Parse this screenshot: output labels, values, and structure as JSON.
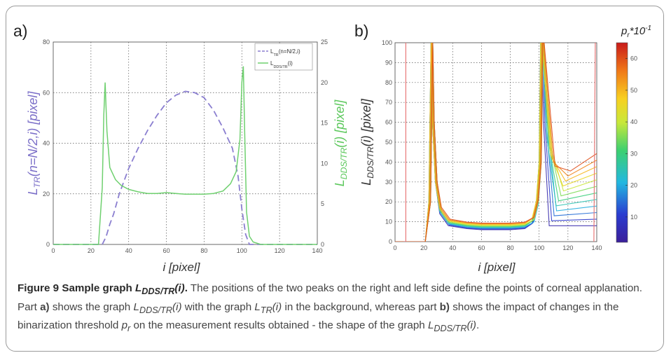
{
  "figure": {
    "caption_label": "Figure 9",
    "caption_title_pre": "Sample graph ",
    "caption_title_L": "L",
    "caption_title_sub": "DDS/TR",
    "caption_title_arg": "(i)",
    "caption_title_end": ".",
    "caption_s1": "The positions of the two peaks on the right and left side define the points of corneal applanation. Part ",
    "caption_a": "a)",
    "caption_s2": " shows the graph ",
    "caption_s2_L": "L",
    "caption_s2_sub": "DDS/TR",
    "caption_s2_arg": "(i)",
    "caption_s3": " with the graph ",
    "caption_s3_L": "L",
    "caption_s3_sub": "TR",
    "caption_s3_arg": "(i)",
    "caption_s4": " in the background, whereas part ",
    "caption_b": "b)",
    "caption_s5": " shows the impact of changes in the binarization threshold ",
    "caption_s5_p": "p",
    "caption_s5_sub": "r",
    "caption_s6": " on the measurement results obtained - the shape of the graph ",
    "caption_s6_L": "L",
    "caption_s6_sub": "DDS/TR",
    "caption_s6_arg": "(i)",
    "caption_s6_end": "."
  },
  "chart_data": [
    {
      "panel": "a)",
      "type": "line",
      "xlabel": "i [pixel]",
      "ylabel_left": "L_TR(n=N/2,i) [pixel]",
      "ylabel_right": "L_DDS/TR(i) [pixel]",
      "xlim": [
        0,
        140
      ],
      "ylim_left": [
        0,
        80
      ],
      "ylim_right": [
        0,
        25
      ],
      "xticks": [
        0,
        20,
        40,
        60,
        80,
        100,
        120,
        140
      ],
      "yticks_left": [
        0,
        20,
        40,
        60,
        80
      ],
      "yticks_right": [
        0,
        5,
        10,
        15,
        20,
        25
      ],
      "grid": true,
      "legend_position": "top-right",
      "colors": {
        "L_TR": "#8b7fd0",
        "L_DDS_TR": "#6fd06f",
        "left_axis": "#7b6fc8",
        "right_axis": "#5cc85c"
      },
      "series": [
        {
          "name": "L_TR(n=N/2,i)",
          "axis": "left",
          "style": "dashed",
          "x": [
            0,
            26,
            28,
            30,
            32,
            35,
            40,
            45,
            50,
            55,
            60,
            65,
            70,
            75,
            80,
            85,
            90,
            95,
            98,
            100,
            102,
            104,
            140
          ],
          "y": [
            0,
            0,
            3,
            8,
            12,
            20,
            30,
            38,
            45,
            51,
            56,
            59,
            60.5,
            60,
            58,
            53,
            46,
            38,
            27,
            14,
            4,
            0,
            0
          ]
        },
        {
          "name": "L_DDS/TR(i)",
          "axis": "right",
          "style": "solid",
          "x": [
            0,
            24,
            26,
            26.8,
            27.5,
            28.5,
            30,
            33,
            36,
            40,
            45,
            50,
            55,
            60,
            65,
            70,
            75,
            80,
            85,
            90,
            94,
            97,
            99,
            100,
            100.8,
            101.5,
            102.5,
            104,
            106,
            110,
            140
          ],
          "y": [
            0,
            0,
            7,
            16,
            20,
            14,
            9.5,
            8,
            7.3,
            6.8,
            6.5,
            6.3,
            6.3,
            6.4,
            6.3,
            6.2,
            6.2,
            6.2,
            6.3,
            6.6,
            7.5,
            9,
            13,
            20,
            22,
            14,
            4,
            1,
            0.3,
            0,
            0
          ]
        }
      ]
    },
    {
      "panel": "b)",
      "type": "line",
      "xlabel": "i [pixel]",
      "ylabel": "L_DDS/TR(i) [pixel]",
      "xlim": [
        0,
        140
      ],
      "ylim": [
        0,
        100
      ],
      "xticks": [
        0,
        20,
        40,
        60,
        80,
        100,
        120,
        140
      ],
      "yticks": [
        0,
        10,
        20,
        30,
        40,
        50,
        60,
        70,
        80,
        90,
        100
      ],
      "grid": true,
      "colorbar": {
        "label": "p_r*10^-1",
        "min": 2,
        "max": 65,
        "ticks": [
          10,
          20,
          30,
          40,
          50,
          60
        ]
      },
      "series_description_values": {
        "threshold_levels": [
          5,
          10,
          15,
          20,
          25,
          30,
          35,
          40,
          45,
          50,
          55,
          60
        ],
        "floor_values": [
          6,
          6.3,
          6.6,
          6.9,
          7.2,
          7.5,
          7.8,
          8.1,
          8.4,
          8.7,
          9.0,
          9.3
        ],
        "left_peak_x": 25,
        "right_peak_x": 101
      }
    }
  ]
}
